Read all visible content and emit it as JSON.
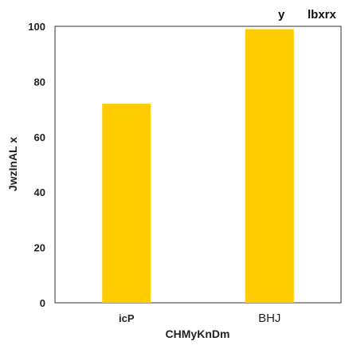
{
  "chart_data": {
    "type": "bar",
    "categories": [
      "icP",
      "BHJ"
    ],
    "values": [
      72,
      99
    ],
    "xlabel": "CHMyKnDm",
    "ylabel": "JwzInAL x",
    "ylim": [
      0,
      100
    ],
    "yticks": [
      0,
      20,
      40,
      60,
      80,
      100
    ],
    "legend": {
      "placement": "top-right",
      "labels": [
        "y",
        "lbxrx"
      ]
    },
    "grid": false,
    "bar_color": "#ffcc00"
  }
}
